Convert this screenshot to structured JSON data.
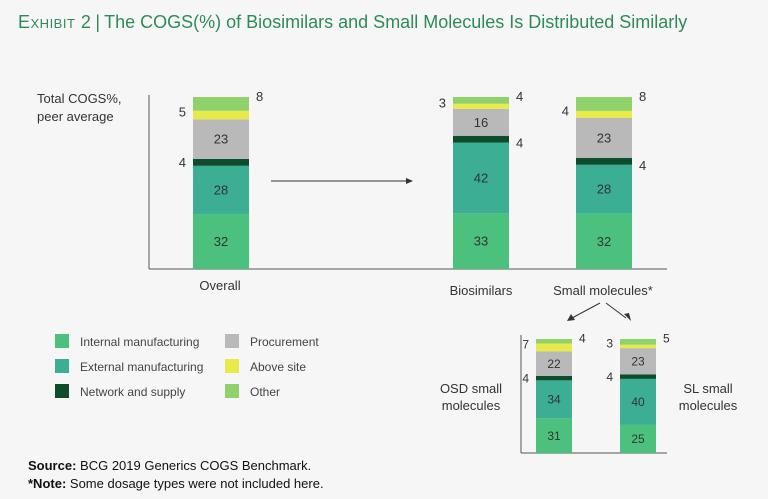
{
  "exhibit": {
    "label": "Exhibit 2",
    "title": "The COGS(%) of Biosimilars and Small Molecules Is Distributed Similarly"
  },
  "colors": {
    "internal": "#4cc17d",
    "external": "#3cae94",
    "network": "#0d4d2c",
    "procurement": "#b9b9b9",
    "above": "#e8ea4a",
    "other": "#8fd26b",
    "axis": "#555555",
    "text": "#333333"
  },
  "chart_data": {
    "type": "bar",
    "stacked": true,
    "ylabel": "Total COGS%, peer average",
    "segments": [
      "Internal manufacturing",
      "External manufacturing",
      "Network and supply",
      "Procurement",
      "Above site",
      "Other"
    ],
    "series": [
      {
        "name": "Overall",
        "values": [
          32,
          28,
          4,
          23,
          5,
          8
        ]
      },
      {
        "name": "Biosimilars",
        "values": [
          33,
          42,
          4,
          16,
          3,
          4
        ]
      },
      {
        "name": "Small molecules*",
        "values": [
          32,
          28,
          4,
          23,
          4,
          8
        ]
      },
      {
        "name": "OSD small molecules",
        "values": [
          31,
          34,
          4,
          22,
          7,
          4
        ]
      },
      {
        "name": "SL small molecules",
        "values": [
          25,
          40,
          4,
          23,
          3,
          5
        ]
      }
    ]
  },
  "legend": [
    {
      "key": "internal",
      "label": "Internal manufacturing"
    },
    {
      "key": "procurement",
      "label": "Procurement"
    },
    {
      "key": "external",
      "label": "External manufacturing"
    },
    {
      "key": "above",
      "label": "Above site"
    },
    {
      "key": "network",
      "label": "Network and supply"
    },
    {
      "key": "other",
      "label": "Other"
    }
  ],
  "axis_labels": {
    "overall": "Overall",
    "biosimilars": "Biosimilars",
    "small_molecules": "Small molecules*",
    "osd_line1": "OSD small",
    "osd_line2": "molecules",
    "sl_line1": "SL small",
    "sl_line2": "molecules",
    "ylabel_line1": "Total COGS%,",
    "ylabel_line2": "peer average"
  },
  "source": {
    "source_label": "Source:",
    "source_text": "BCG 2019 Generics COGS Benchmark.",
    "note_label": "*Note:",
    "note_text": "Some dosage types were not included here."
  }
}
